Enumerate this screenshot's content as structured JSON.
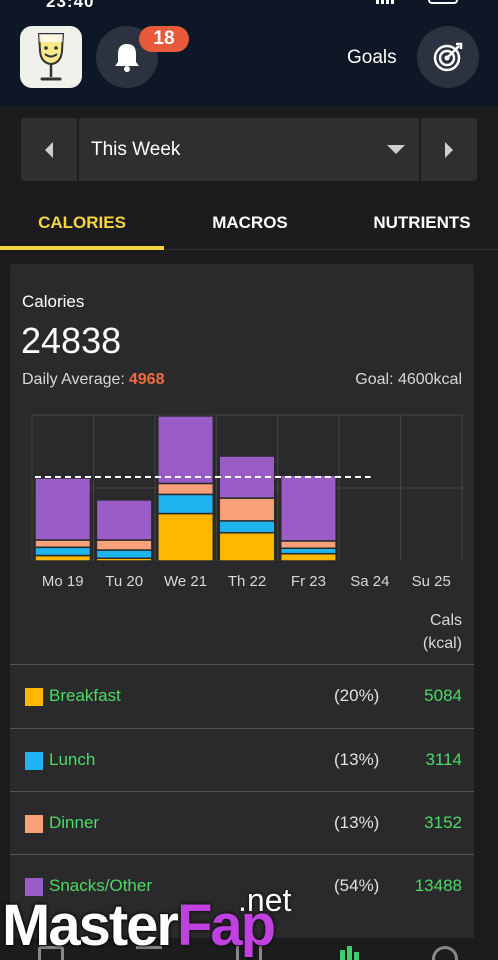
{
  "status_bar": {
    "time": "23:40"
  },
  "header": {
    "notification_count": "18",
    "goals_label": "Goals",
    "icons": {
      "logo": "wine-glass-smiley-icon",
      "bell": "bell-icon",
      "goals": "target-icon"
    }
  },
  "week_selector": {
    "label": "This Week",
    "icons": {
      "prev": "chevron-left-icon",
      "next": "chevron-right-icon",
      "dropdown": "caret-down-icon"
    }
  },
  "tabs": [
    {
      "label": "CALORIES",
      "active": true
    },
    {
      "label": "MACROS",
      "active": false
    },
    {
      "label": "NUTRIENTS",
      "active": false
    }
  ],
  "calories_card": {
    "title": "Calories",
    "total": "24838",
    "daily_average_label": "Daily Average:",
    "daily_average_value": "4968",
    "goal_label": "Goal: 4600kcal",
    "cals_header_line1": "Cals",
    "cals_header_line2": "(kcal)"
  },
  "chart_data": {
    "type": "bar",
    "stacked": true,
    "categories": [
      "Mo 19",
      "Tu 20",
      "We 21",
      "Th 22",
      "Fr 23",
      "Sa 24",
      "Su 25"
    ],
    "series": [
      {
        "name": "Breakfast",
        "color": "#ffb800",
        "values": [
          300,
          150,
          2600,
          1550,
          400,
          0,
          0
        ]
      },
      {
        "name": "Lunch",
        "color": "#1eb4f0",
        "values": [
          450,
          450,
          1050,
          650,
          300,
          0,
          0
        ]
      },
      {
        "name": "Dinner",
        "color": "#f7a07a",
        "values": [
          400,
          550,
          600,
          1250,
          400,
          0,
          0
        ]
      },
      {
        "name": "Snacks/Other",
        "color": "#9a5cc6",
        "values": [
          3400,
          2200,
          3700,
          2300,
          3600,
          0,
          0
        ]
      }
    ],
    "goal_line": 4600,
    "ylim": [
      0,
      8000
    ],
    "grid": true
  },
  "legend": [
    {
      "name": "Breakfast",
      "color": "#ffb800",
      "pct": "(20%)",
      "value": "5084"
    },
    {
      "name": "Lunch",
      "color": "#1eb4f0",
      "pct": "(13%)",
      "value": "3114"
    },
    {
      "name": "Dinner",
      "color": "#f7a07a",
      "pct": "(13%)",
      "value": "3152"
    },
    {
      "name": "Snacks/Other",
      "color": "#9a5cc6",
      "pct": "(54%)",
      "value": "13488"
    }
  ],
  "watermark": {
    "net": ".net",
    "master": "Master",
    "fap": "Fap"
  },
  "bottom_nav": {
    "icons": [
      "diary-icon",
      "dashboard-icon",
      "food-icon",
      "stats-icon",
      "profile-icon"
    ]
  }
}
